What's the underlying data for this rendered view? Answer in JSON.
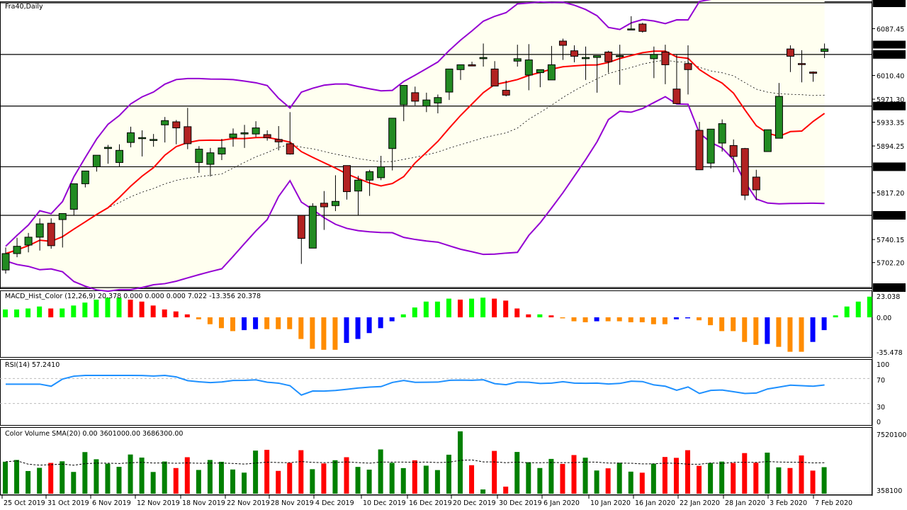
{
  "window": {
    "title": "Fra40,Daily"
  },
  "price_pane": {
    "axis_ticks": [
      "6087.45",
      "6010.40",
      "5971.30",
      "5933.35",
      "5894.25",
      "5817.20",
      "5740.15",
      "5702.20"
    ],
    "hlines": [
      {
        "label": "6130.00",
        "value": 6130
      },
      {
        "label": "6045.00",
        "value": 6045
      },
      {
        "label": "5960.00",
        "value": 5960
      },
      {
        "label": "5860.00",
        "value": 5860
      },
      {
        "label": "5780.00",
        "value": 5780
      },
      {
        "label": "5661.00",
        "value": 5661
      }
    ],
    "current_price_label": "6054.76",
    "colors": {
      "bull": "#228B22",
      "bear": "#B22222",
      "bands": "#9400D3",
      "ma": "#FF0000",
      "band_fill": "#FFFFF0"
    }
  },
  "macd_pane": {
    "title": "MACD_Hist_Color (12,26,9)  20.378 0.000 0.000 0.000 7.022 -13.356 20.378",
    "axis_ticks": [
      "23.038",
      "0.00",
      "-35.478"
    ]
  },
  "rsi_pane": {
    "title": "RSI(14) 57.2410",
    "axis_ticks": [
      "100",
      "70",
      "30",
      "0"
    ]
  },
  "volume_pane": {
    "title": "Color Volume SMA(20) 0.00 3601000.00 3686300.00",
    "axis_ticks": [
      "7520100",
      "358100"
    ]
  },
  "x_axis": {
    "labels": [
      "25 Oct 2019",
      "31 Oct 2019",
      "6 Nov 2019",
      "12 Nov 2019",
      "18 Nov 2019",
      "22 Nov 2019",
      "28 Nov 2019",
      "4 Dec 2019",
      "10 Dec 2019",
      "16 Dec 2019",
      "20 Dec 2019",
      "30 Dec 2019",
      "6 Jan 2020",
      "10 Jan 2020",
      "16 Jan 2020",
      "22 Jan 2020",
      "28 Jan 2020",
      "3 Feb 2020",
      "7 Feb 2020"
    ]
  },
  "chart_data": [
    {
      "type": "candlestick",
      "title": "Fra40,Daily",
      "ylim": [
        5661,
        6130
      ],
      "x_labels": [
        "25 Oct 2019",
        "31 Oct 2019",
        "6 Nov 2019",
        "12 Nov 2019",
        "18 Nov 2019",
        "22 Nov 2019",
        "28 Nov 2019",
        "4 Dec 2019",
        "10 Dec 2019",
        "16 Dec 2019",
        "20 Dec 2019",
        "30 Dec 2019",
        "6 Jan 2020",
        "10 Jan 2020",
        "16 Jan 2020",
        "22 Jan 2020",
        "28 Jan 2020",
        "3 Feb 2020",
        "7 Feb 2020"
      ],
      "horizontal_levels": [
        6130,
        6045,
        5960,
        5860,
        5780,
        5661
      ],
      "last_price": 6054.76,
      "candles": [
        [
          5690,
          5727,
          5684,
          5717
        ],
        [
          5717,
          5743,
          5711,
          5729
        ],
        [
          5731,
          5751,
          5719,
          5744
        ],
        [
          5744,
          5775,
          5722,
          5766
        ],
        [
          5767,
          5775,
          5725,
          5730
        ],
        [
          5773,
          5776,
          5727,
          5783
        ],
        [
          5790,
          5832,
          5780,
          5832
        ],
        [
          5832,
          5851,
          5826,
          5853
        ],
        [
          5860,
          5879,
          5852,
          5879
        ],
        [
          5890,
          5896,
          5865,
          5892
        ],
        [
          5867,
          5897,
          5860,
          5887
        ],
        [
          5900,
          5926,
          5892,
          5916
        ],
        [
          5908,
          5920,
          5877,
          5908
        ],
        [
          5905,
          5914,
          5893,
          5905
        ],
        [
          5929,
          5942,
          5900,
          5936
        ],
        [
          5934,
          5937,
          5897,
          5924
        ],
        [
          5926,
          5957,
          5889,
          5898
        ],
        [
          5867,
          5894,
          5850,
          5889
        ],
        [
          5864,
          5891,
          5844,
          5883
        ],
        [
          5881,
          5906,
          5871,
          5891
        ],
        [
          5908,
          5923,
          5893,
          5914
        ],
        [
          5914,
          5929,
          5891,
          5916
        ],
        [
          5914,
          5935,
          5909,
          5924
        ],
        [
          5913,
          5920,
          5903,
          5908
        ],
        [
          5905,
          5927,
          5887,
          5901
        ],
        [
          5898,
          5950,
          5880,
          5881
        ],
        [
          5780,
          5778,
          5700,
          5742
        ],
        [
          5726,
          5800,
          5726,
          5795
        ],
        [
          5800,
          5820,
          5756,
          5794
        ],
        [
          5796,
          5846,
          5787,
          5803
        ],
        [
          5862,
          5862,
          5806,
          5819
        ],
        [
          5820,
          5845,
          5780,
          5838
        ],
        [
          5838,
          5855,
          5812,
          5852
        ],
        [
          5842,
          5878,
          5838,
          5860
        ],
        [
          5890,
          5928,
          5854,
          5940
        ],
        [
          5962,
          5984,
          5935,
          5994
        ],
        [
          5982,
          5992,
          5961,
          5968
        ],
        [
          5960,
          5982,
          5950,
          5970
        ],
        [
          5965,
          5979,
          5948,
          5974
        ],
        [
          5983,
          6016,
          5970,
          6021
        ],
        [
          6020,
          6019,
          6003,
          6028
        ],
        [
          6028,
          6033,
          6026,
          6026
        ],
        [
          6038,
          6063,
          6025,
          6040
        ],
        [
          6021,
          6034,
          6006,
          5993
        ],
        [
          5986,
          6002,
          5976,
          5978
        ],
        [
          6034,
          6061,
          6025,
          6038
        ],
        [
          6011,
          6062,
          5986,
          6036
        ],
        [
          6015,
          6020,
          5991,
          6020
        ],
        [
          6003,
          6059,
          6003,
          6028
        ],
        [
          6067,
          6071,
          6036,
          6060
        ],
        [
          6051,
          6060,
          6032,
          6042
        ],
        [
          6038,
          6058,
          6003,
          6040
        ],
        [
          6040,
          6043,
          5982,
          6043
        ],
        [
          6049,
          6051,
          6015,
          6033
        ],
        [
          6043,
          6061,
          5995,
          6043
        ],
        [
          6087,
          6108,
          6087,
          6087
        ],
        [
          6095,
          6097,
          6081,
          6083
        ],
        [
          6038,
          6058,
          6006,
          6045
        ],
        [
          6049,
          6061,
          5996,
          6028
        ],
        [
          5988,
          6045,
          5964,
          5964
        ],
        [
          6030,
          6060,
          5979,
          6020
        ],
        [
          5920,
          5934,
          5855,
          5855
        ],
        [
          5866,
          5890,
          5857,
          5922
        ],
        [
          5899,
          5938,
          5885,
          5931
        ],
        [
          5895,
          5905,
          5851,
          5877
        ],
        [
          5890,
          5891,
          5805,
          5813
        ],
        [
          5843,
          5855,
          5805,
          5822
        ],
        [
          5885,
          5885,
          5885,
          5921
        ],
        [
          5907,
          5998,
          5913,
          5976
        ],
        [
          6054,
          6060,
          6016,
          6042
        ],
        [
          6030,
          6052,
          5999,
          6029
        ],
        [
          6016,
          6017,
          6000,
          6014
        ],
        [
          6050,
          6063,
          6039,
          6054
        ]
      ],
      "indicators": [
        "Bollinger Bands (upper, lower, middle dashed)",
        "Moving average (red)"
      ]
    },
    {
      "type": "bar",
      "title": "MACD_Hist_Color (12,26,9)",
      "values_text": "20.378 0.000 0.000 0.000 7.022 -13.356 20.378",
      "ylim": [
        -35.478,
        23.038
      ],
      "values": [
        8,
        8,
        9,
        11,
        9,
        9,
        12,
        15,
        18,
        20,
        20,
        18,
        16,
        12,
        8,
        6,
        3,
        -2,
        -7,
        -11,
        -14,
        -13,
        -12,
        -12,
        -12,
        -12,
        -22,
        -32,
        -33,
        -33,
        -26,
        -22,
        -16,
        -11,
        -4,
        3,
        10,
        16,
        16,
        19,
        18,
        19,
        20,
        19,
        17,
        9,
        3,
        3,
        2,
        -1,
        -4,
        -5,
        -4,
        -4,
        -4,
        -5,
        -5,
        -7,
        -7,
        -2,
        -1,
        -3,
        -8,
        -14,
        -14,
        -25,
        -28,
        -27,
        -30,
        -35,
        -35,
        -25,
        -13,
        2,
        11,
        16,
        21
      ],
      "colors_legend": {
        "rising_positive": "#00FF00",
        "falling_positive": "#FF0000",
        "falling_negative": "#FF8C00",
        "rising_negative": "#0000FF"
      }
    },
    {
      "type": "line",
      "title": "RSI(14) 57.2410",
      "ylim": [
        0,
        100
      ],
      "levels": [
        70,
        30
      ],
      "last_value": 57.241
    },
    {
      "type": "bar",
      "title": "Color Volume SMA(20)",
      "values_text": "0.00 3601000.00 3686300.00",
      "ylim": [
        358100,
        7520100
      ],
      "sma_last": 3686300
    }
  ]
}
